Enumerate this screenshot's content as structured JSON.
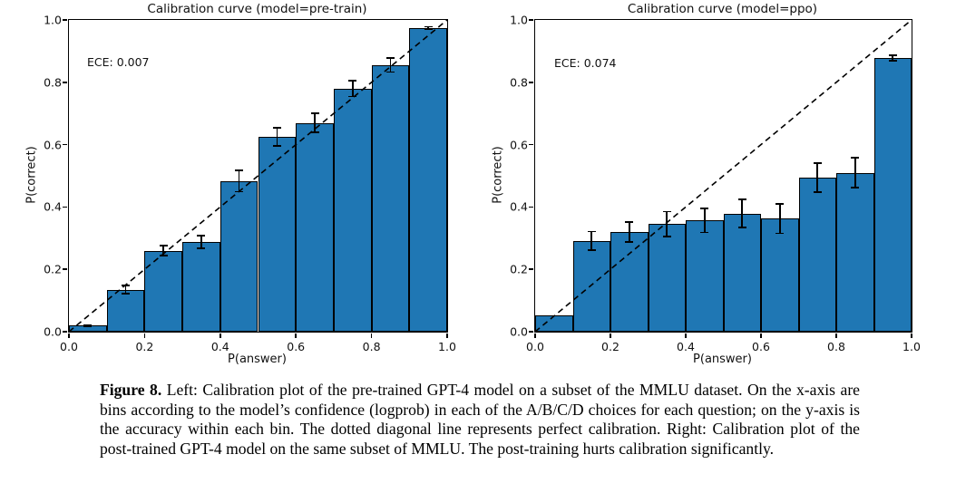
{
  "colors": {
    "bar_fill": "#1f77b4",
    "bar_edge": "#000000",
    "diagonal": "#000000",
    "background": "#ffffff"
  },
  "caption": {
    "label": "Figure 8.",
    "text": "Left: Calibration plot of the pre-trained GPT-4 model on a subset of the MMLU dataset. On the x-axis are bins according to the model’s confidence (logprob) in each of the A/B/C/D choices for each question; on the y-axis is the accuracy within each bin. The dotted diagonal line represents perfect calibration. Right: Calibration plot of the post-trained GPT-4 model on the same subset of MMLU. The post-training hurts calibration significantly."
  },
  "chart_data": [
    {
      "type": "bar",
      "title": "Calibration curve (model=pre-train)",
      "annotation": "ECE: 0.007",
      "xlabel": "P(answer)",
      "ylabel": "P(correct)",
      "xlim": [
        0,
        1
      ],
      "ylim": [
        0,
        1
      ],
      "bin_width": 0.1,
      "bin_edges": [
        0.0,
        0.1,
        0.2,
        0.3,
        0.4,
        0.5,
        0.6,
        0.7,
        0.8,
        0.9,
        1.0
      ],
      "values": [
        0.02,
        0.135,
        0.26,
        0.288,
        0.483,
        0.625,
        0.67,
        0.78,
        0.855,
        0.975
      ],
      "errors": [
        0.004,
        0.016,
        0.019,
        0.022,
        0.036,
        0.032,
        0.033,
        0.028,
        0.025,
        0.006
      ],
      "xticks": [
        "0.0",
        "0.2",
        "0.4",
        "0.6",
        "0.8",
        "1.0"
      ],
      "yticks": [
        "0.0",
        "0.2",
        "0.4",
        "0.6",
        "0.8",
        "1.0"
      ],
      "diagonal": {
        "style": "dashed",
        "from": [
          0,
          0
        ],
        "to": [
          1,
          1
        ]
      },
      "grid": false,
      "legend": "none"
    },
    {
      "type": "bar",
      "title": "Calibration curve (model=ppo)",
      "annotation": "ECE: 0.074",
      "xlabel": "P(answer)",
      "ylabel": "P(correct)",
      "xlim": [
        0,
        1
      ],
      "ylim": [
        0,
        1
      ],
      "bin_width": 0.1,
      "bin_edges": [
        0.0,
        0.1,
        0.2,
        0.3,
        0.4,
        0.5,
        0.6,
        0.7,
        0.8,
        0.9,
        1.0
      ],
      "values": [
        0.052,
        0.292,
        0.32,
        0.345,
        0.357,
        0.379,
        0.363,
        0.495,
        0.51,
        0.878
      ],
      "errors": [
        0,
        0.032,
        0.034,
        0.043,
        0.041,
        0.047,
        0.05,
        0.049,
        0.05,
        0.012
      ],
      "xticks": [
        "0.0",
        "0.2",
        "0.4",
        "0.6",
        "0.8",
        "1.0"
      ],
      "yticks": [
        "0.0",
        "0.2",
        "0.4",
        "0.6",
        "0.8",
        "1.0"
      ],
      "diagonal": {
        "style": "dashed",
        "from": [
          0,
          0
        ],
        "to": [
          1,
          1
        ]
      },
      "grid": false,
      "legend": "none"
    }
  ]
}
